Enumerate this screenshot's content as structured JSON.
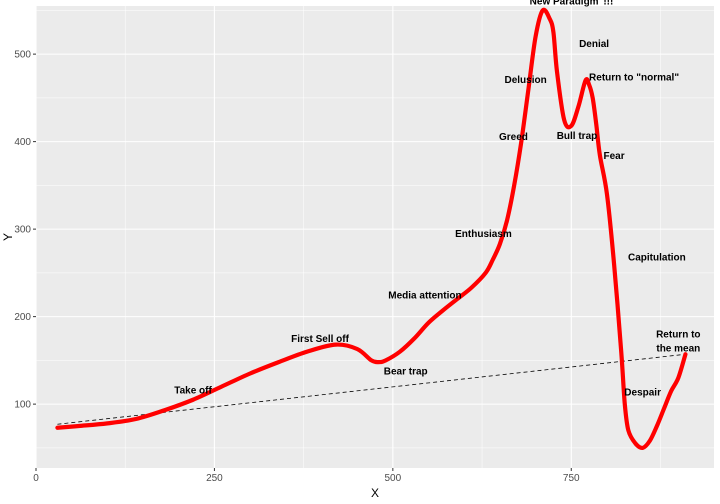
{
  "chart_data": {
    "type": "line",
    "title": "",
    "xlabel": "X",
    "ylabel": "Y",
    "xlim": [
      0,
      950
    ],
    "ylim": [
      27,
      555
    ],
    "x_ticks": [
      0,
      250,
      500,
      750
    ],
    "y_ticks": [
      100,
      200,
      300,
      400,
      500
    ],
    "grid": true,
    "legend": "none",
    "colors": {
      "main_line": "#ff0000",
      "trend_line": "#000000",
      "panel": "#ebebeb",
      "grid": "#ffffff"
    },
    "series": [
      {
        "style": "solid",
        "x": [
          30,
          60,
          100,
          140,
          180,
          220,
          260,
          300,
          340,
          380,
          420,
          450,
          470,
          480,
          490,
          510,
          530,
          550,
          570,
          590,
          610,
          630,
          640,
          650,
          660,
          670,
          680,
          690,
          700,
          710,
          720,
          725,
          730,
          740,
          750,
          760,
          770,
          775,
          780,
          785,
          790,
          800,
          810,
          820,
          825,
          830,
          840,
          850,
          860,
          870,
          880,
          890,
          900,
          910
        ],
        "y": [
          73,
          75,
          78,
          83,
          93,
          105,
          120,
          135,
          148,
          160,
          168,
          163,
          150,
          148,
          150,
          160,
          175,
          193,
          207,
          220,
          233,
          250,
          265,
          283,
          310,
          350,
          400,
          460,
          520,
          550,
          540,
          525,
          480,
          425,
          418,
          440,
          470,
          465,
          450,
          420,
          385,
          340,
          260,
          160,
          100,
          70,
          55,
          50,
          58,
          75,
          95,
          115,
          130,
          157
        ]
      },
      {
        "style": "dashed",
        "x": [
          30,
          910
        ],
        "y": [
          77,
          157
        ]
      }
    ],
    "annotations": [
      {
        "text": "\"New Paradigm\"!!!",
        "x": 747,
        "y": 561
      },
      {
        "text": "Denial",
        "x": 782,
        "y": 512
      },
      {
        "text": "Delusion",
        "x": 686,
        "y": 471
      },
      {
        "text": "Return to \"normal\"",
        "x": 838,
        "y": 474
      },
      {
        "text": "Greed",
        "x": 669,
        "y": 406
      },
      {
        "text": "Bull trap",
        "x": 758,
        "y": 407
      },
      {
        "text": "Fear",
        "x": 810,
        "y": 384
      },
      {
        "text": "Enthusiasm",
        "x": 627,
        "y": 295
      },
      {
        "text": "Capitulation",
        "x": 870,
        "y": 268
      },
      {
        "text": "Media attention",
        "x": 545,
        "y": 225
      },
      {
        "text": "First Sell off",
        "x": 398,
        "y": 175
      },
      {
        "text": "Return to",
        "x": 900,
        "y": 180
      },
      {
        "text": "the mean",
        "x": 900,
        "y": 164
      },
      {
        "text": "Bear trap",
        "x": 518,
        "y": 138
      },
      {
        "text": "Take off",
        "x": 220,
        "y": 116
      },
      {
        "text": "Despair",
        "x": 850,
        "y": 114
      }
    ]
  }
}
